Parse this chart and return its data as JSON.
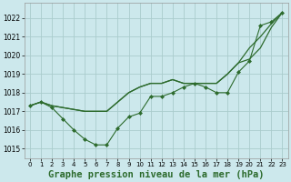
{
  "background_color": "#cce8ec",
  "grid_color": "#aacccc",
  "line_color": "#2d6b2d",
  "marker_color": "#2d6b2d",
  "title": "Graphe pression niveau de la mer (hPa)",
  "title_fontsize": 7.5,
  "ylim": [
    1014.5,
    1022.8
  ],
  "xlim": [
    -0.5,
    23.5
  ],
  "yticks": [
    1015,
    1016,
    1017,
    1018,
    1019,
    1020,
    1021,
    1022
  ],
  "xticks": [
    0,
    1,
    2,
    3,
    4,
    5,
    6,
    7,
    8,
    9,
    10,
    11,
    12,
    13,
    14,
    15,
    16,
    17,
    18,
    19,
    20,
    21,
    22,
    23
  ],
  "series_smooth1": [
    1017.3,
    1017.5,
    1017.3,
    1017.2,
    1017.1,
    1017.0,
    1017.0,
    1017.0,
    1017.5,
    1018.0,
    1018.3,
    1018.5,
    1018.5,
    1018.7,
    1018.5,
    1018.5,
    1018.5,
    1018.5,
    1019.0,
    1019.6,
    1020.4,
    1021.0,
    1021.7,
    1022.3
  ],
  "series_smooth2": [
    1017.3,
    1017.5,
    1017.3,
    1017.2,
    1017.1,
    1017.0,
    1017.0,
    1017.0,
    1017.5,
    1018.0,
    1018.3,
    1018.5,
    1018.5,
    1018.7,
    1018.5,
    1018.5,
    1018.5,
    1018.5,
    1019.0,
    1019.6,
    1019.8,
    1020.4,
    1021.5,
    1022.3
  ],
  "series_markers": [
    1017.3,
    1017.5,
    1017.2,
    1016.6,
    1016.0,
    1015.5,
    1015.2,
    1015.2,
    1016.1,
    1016.7,
    1016.9,
    1017.8,
    1017.8,
    1018.0,
    1018.3,
    1018.5,
    1018.3,
    1018.0,
    1018.0,
    1019.1,
    1019.7,
    1021.6,
    1021.8,
    1022.3
  ]
}
